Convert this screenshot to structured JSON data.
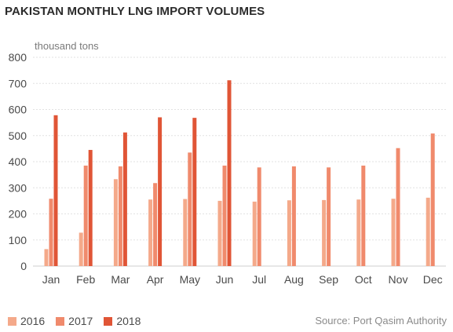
{
  "chart_data": {
    "type": "bar",
    "title": "PAKISTAN MONTHLY LNG IMPORT VOLUMES",
    "ylabel": "thousand tons",
    "xlabel": "",
    "ylim": [
      0,
      800
    ],
    "yticks": [
      0,
      100,
      200,
      300,
      400,
      500,
      600,
      700,
      800
    ],
    "grid": true,
    "legend_position": "bottom-left",
    "categories": [
      "Jan",
      "Feb",
      "Mar",
      "Apr",
      "May",
      "Jun",
      "Jul",
      "Aug",
      "Sep",
      "Oct",
      "Nov",
      "Dec"
    ],
    "series": [
      {
        "name": "2016",
        "color": "#f4a98a",
        "values": [
          65,
          128,
          333,
          255,
          257,
          250,
          247,
          252,
          253,
          255,
          258,
          262
        ]
      },
      {
        "name": "2017",
        "color": "#f08a6c",
        "values": [
          258,
          385,
          382,
          318,
          435,
          385,
          378,
          382,
          378,
          385,
          452,
          508
        ]
      },
      {
        "name": "2018",
        "color": "#e05536",
        "values": [
          578,
          445,
          512,
          570,
          568,
          712,
          null,
          null,
          null,
          null,
          null,
          null
        ]
      }
    ],
    "source": "Source: Port Qasim Authority"
  }
}
